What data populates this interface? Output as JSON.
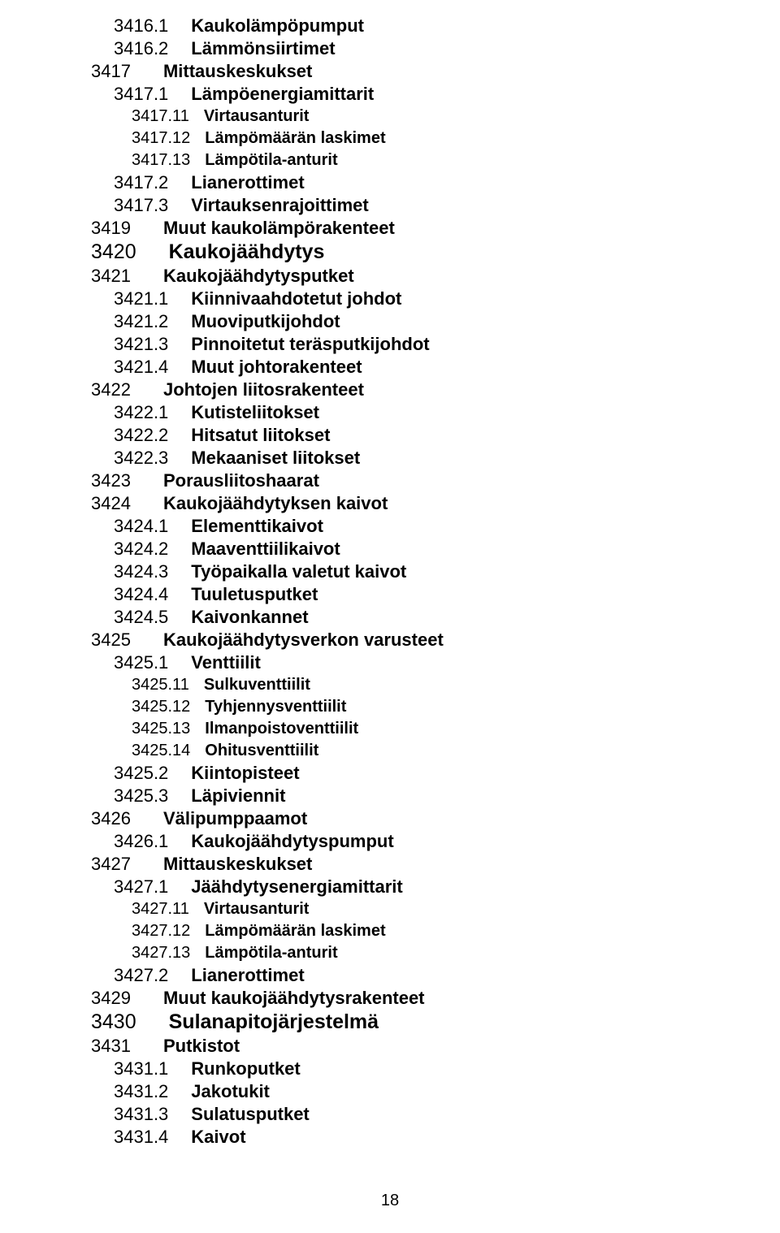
{
  "page_number": "18",
  "text_color": "#000000",
  "background_color": "#ffffff",
  "font_family": "Arial",
  "entries": [
    {
      "code": "3416.1",
      "label": "Kaukolämpöpumput",
      "indent": 1,
      "size": "m",
      "gap": 1
    },
    {
      "code": "3416.2",
      "label": "Lämmönsiirtimet",
      "indent": 1,
      "size": "m",
      "gap": 1
    },
    {
      "code": "3417",
      "label": "Mittauskeskukset",
      "indent": 0,
      "size": "m",
      "gap": 0
    },
    {
      "code": "3417.1",
      "label": "Lämpöenergiamittarit",
      "indent": 1,
      "size": "m",
      "gap": 1
    },
    {
      "code": "3417.11",
      "label": "Virtausanturit",
      "indent": 2,
      "size": "s",
      "gap": 2
    },
    {
      "code": "3417.12",
      "label": "Lämpömäärän laskimet",
      "indent": 2,
      "size": "s",
      "gap": 2
    },
    {
      "code": "3417.13",
      "label": "Lämpötila-anturit",
      "indent": 2,
      "size": "s",
      "gap": 2
    },
    {
      "code": "3417.2",
      "label": "Lianerottimet",
      "indent": 1,
      "size": "m",
      "gap": 1
    },
    {
      "code": "3417.3",
      "label": "Virtauksenrajoittimet",
      "indent": 1,
      "size": "m",
      "gap": 1
    },
    {
      "code": "3419",
      "label": "Muut kaukolämpörakenteet",
      "indent": 0,
      "size": "m",
      "gap": 0
    },
    {
      "code": "3420",
      "label": "Kaukojäähdytys",
      "indent": 0,
      "size": "l",
      "gap": 0
    },
    {
      "code": "3421",
      "label": "Kaukojäähdytysputket",
      "indent": 0,
      "size": "m",
      "gap": 0
    },
    {
      "code": "3421.1",
      "label": "Kiinnivaahdotetut johdot",
      "indent": 1,
      "size": "m",
      "gap": 1
    },
    {
      "code": "3421.2",
      "label": "Muoviputkijohdot",
      "indent": 1,
      "size": "m",
      "gap": 1
    },
    {
      "code": "3421.3",
      "label": "Pinnoitetut teräsputkijohdot",
      "indent": 1,
      "size": "m",
      "gap": 1
    },
    {
      "code": "3421.4",
      "label": "Muut johtorakenteet",
      "indent": 1,
      "size": "m",
      "gap": 1
    },
    {
      "code": "3422",
      "label": "Johtojen liitosrakenteet",
      "indent": 0,
      "size": "m",
      "gap": 0
    },
    {
      "code": "3422.1",
      "label": "Kutisteliitokset",
      "indent": 1,
      "size": "m",
      "gap": 1
    },
    {
      "code": "3422.2",
      "label": "Hitsatut liitokset",
      "indent": 1,
      "size": "m",
      "gap": 1
    },
    {
      "code": "3422.3",
      "label": "Mekaaniset liitokset",
      "indent": 1,
      "size": "m",
      "gap": 1
    },
    {
      "code": "3423",
      "label": "Porausliitoshaarat",
      "indent": 0,
      "size": "m",
      "gap": 0
    },
    {
      "code": "3424",
      "label": "Kaukojäähdytyksen kaivot",
      "indent": 0,
      "size": "m",
      "gap": 0
    },
    {
      "code": "3424.1",
      "label": "Elementtikaivot",
      "indent": 1,
      "size": "m",
      "gap": 1
    },
    {
      "code": "3424.2",
      "label": "Maaventtiilikaivot",
      "indent": 1,
      "size": "m",
      "gap": 1
    },
    {
      "code": "3424.3",
      "label": "Työpaikalla valetut kaivot",
      "indent": 1,
      "size": "m",
      "gap": 1
    },
    {
      "code": "3424.4",
      "label": "Tuuletusputket",
      "indent": 1,
      "size": "m",
      "gap": 1
    },
    {
      "code": "3424.5",
      "label": "Kaivonkannet",
      "indent": 1,
      "size": "m",
      "gap": 1
    },
    {
      "code": "3425",
      "label": "Kaukojäähdytysverkon varusteet",
      "indent": 0,
      "size": "m",
      "gap": 0
    },
    {
      "code": "3425.1",
      "label": "Venttiilit",
      "indent": 1,
      "size": "m",
      "gap": 1
    },
    {
      "code": "3425.11",
      "label": "Sulkuventtiilit",
      "indent": 2,
      "size": "s",
      "gap": 2
    },
    {
      "code": "3425.12",
      "label": "Tyhjennysventtiilit",
      "indent": 2,
      "size": "s",
      "gap": 2
    },
    {
      "code": "3425.13",
      "label": "Ilmanpoistoventtiilit",
      "indent": 2,
      "size": "s",
      "gap": 2
    },
    {
      "code": "3425.14",
      "label": "Ohitusventtiilit",
      "indent": 2,
      "size": "s",
      "gap": 2
    },
    {
      "code": "3425.2",
      "label": "Kiintopisteet",
      "indent": 1,
      "size": "m",
      "gap": 1
    },
    {
      "code": "3425.3",
      "label": "Läpiviennit",
      "indent": 1,
      "size": "m",
      "gap": 1
    },
    {
      "code": "3426",
      "label": "Välipumppaamot",
      "indent": 0,
      "size": "m",
      "gap": 0
    },
    {
      "code": "3426.1",
      "label": "Kaukojäähdytyspumput",
      "indent": 1,
      "size": "m",
      "gap": 1
    },
    {
      "code": "3427",
      "label": "Mittauskeskukset",
      "indent": 0,
      "size": "m",
      "gap": 0
    },
    {
      "code": "3427.1",
      "label": "Jäähdytysenergiamittarit",
      "indent": 1,
      "size": "m",
      "gap": 1
    },
    {
      "code": "3427.11",
      "label": "Virtausanturit",
      "indent": 2,
      "size": "s",
      "gap": 2
    },
    {
      "code": "3427.12",
      "label": "Lämpömäärän laskimet",
      "indent": 2,
      "size": "s",
      "gap": 2
    },
    {
      "code": "3427.13",
      "label": "Lämpötila-anturit",
      "indent": 2,
      "size": "s",
      "gap": 2
    },
    {
      "code": "3427.2",
      "label": "Lianerottimet",
      "indent": 1,
      "size": "m",
      "gap": 1
    },
    {
      "code": "3429",
      "label": "Muut kaukojäähdytysrakenteet",
      "indent": 0,
      "size": "m",
      "gap": 0
    },
    {
      "code": "3430",
      "label": "Sulanapitojärjestelmä",
      "indent": 0,
      "size": "l",
      "gap": 0
    },
    {
      "code": "3431",
      "label": "Putkistot",
      "indent": 0,
      "size": "m",
      "gap": 0
    },
    {
      "code": "3431.1",
      "label": "Runkoputket",
      "indent": 1,
      "size": "m",
      "gap": 1
    },
    {
      "code": "3431.2",
      "label": "Jakotukit",
      "indent": 1,
      "size": "m",
      "gap": 1
    },
    {
      "code": "3431.3",
      "label": "Sulatusputket",
      "indent": 1,
      "size": "m",
      "gap": 1
    },
    {
      "code": "3431.4",
      "label": "Kaivot",
      "indent": 1,
      "size": "m",
      "gap": 1
    }
  ]
}
